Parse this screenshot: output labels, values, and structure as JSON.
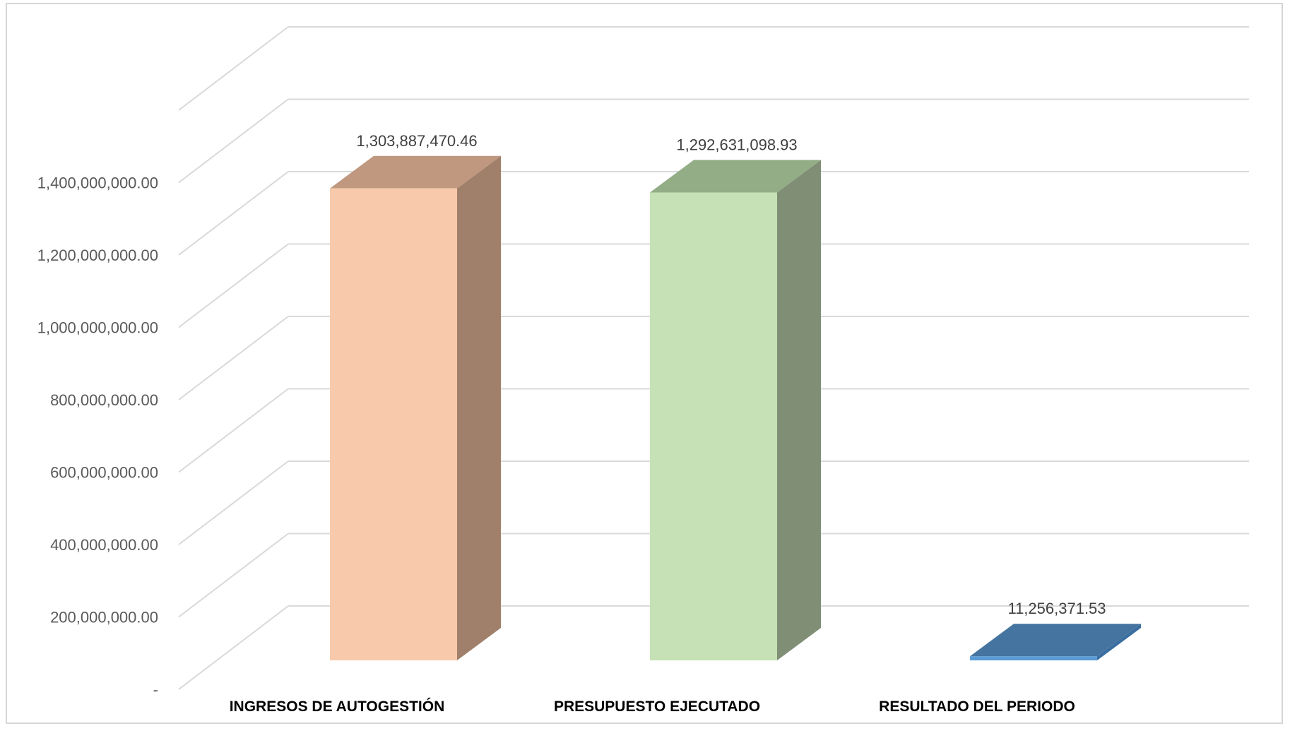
{
  "chart_data": {
    "type": "bar",
    "style": "3d-column",
    "categories": [
      "INGRESOS DE AUTOGESTIÓN",
      "PRESUPUESTO EJECUTADO",
      "RESULTADO DEL PERIODO"
    ],
    "values": [
      1303887470.46,
      1292631098.93,
      11256371.53
    ],
    "data_labels": [
      "1,303,887,470.46",
      "1,292,631,098.93",
      "11,256,371.53"
    ],
    "yticks": [
      0,
      200000000,
      400000000,
      600000000,
      800000000,
      1000000000,
      1200000000,
      1400000000,
      1600000000
    ],
    "ytick_labels": [
      "-",
      "200,000,000.00",
      "400,000,000.00",
      "600,000,000.00",
      "800,000,000.00",
      "1,000,000,000.00",
      "1,200,000,000.00",
      "1,400,000,000.00",
      ""
    ],
    "ylim": [
      0,
      1600000000
    ],
    "grid": true,
    "legend": "none",
    "colors": [
      {
        "front": "#f8caab",
        "side": "#a0806a",
        "top": "#bf987f"
      },
      {
        "front": "#c5e1b5",
        "side": "#7f8e75",
        "top": "#93ad87"
      },
      {
        "front": "#5b9bd5",
        "side": "#3a6ea0",
        "top": "#44749f"
      }
    ]
  }
}
